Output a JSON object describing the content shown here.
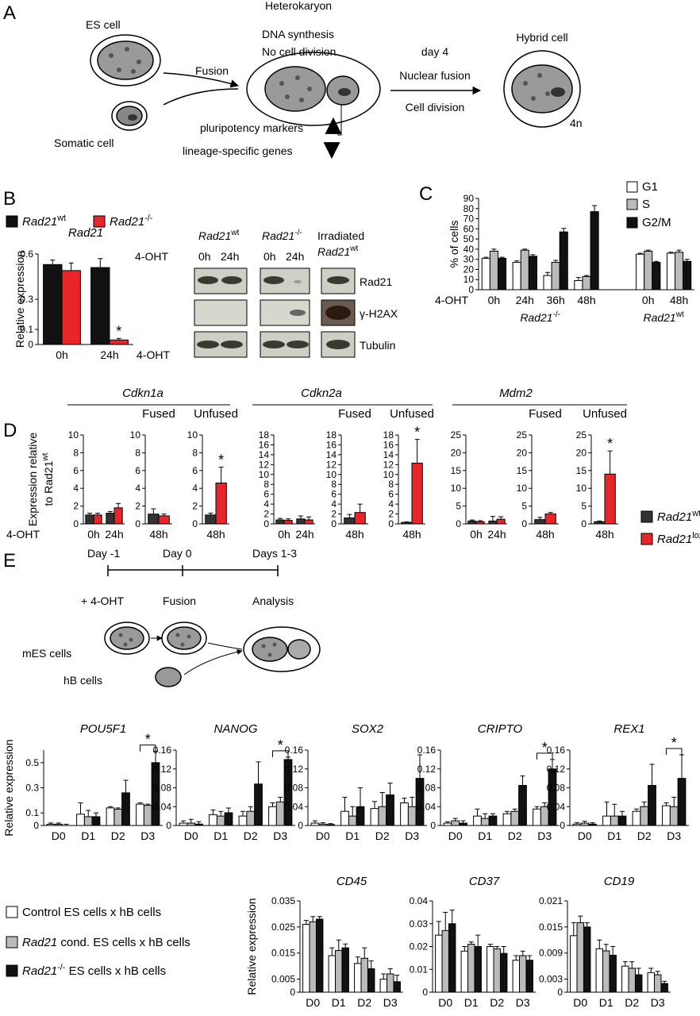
{
  "panel_labels": [
    "A",
    "B",
    "C",
    "D",
    "E"
  ],
  "panel_a": {
    "es_cell": "ES cell",
    "somatic_cell": "Somatic cell",
    "fusion": "Fusion",
    "heterokaryon": "Heterokaryon",
    "dna_synthesis": "DNA synthesis",
    "no_division": "No cell division",
    "pluripotency": "pluripotency markers",
    "lineage": "lineage-specific genes",
    "day4": "day 4",
    "nuclear_fusion": "Nuclear fusion",
    "cell_division": "Cell division",
    "hybrid_cell": "Hybrid cell",
    "ploidy": "4n"
  },
  "panel_b": {
    "legend": [
      {
        "text": "Rad21",
        "sup": "wt",
        "color": "#111111"
      },
      {
        "text": "Rad21",
        "sup": "-/-",
        "color": "#e8262a"
      }
    ]
  },
  "blot": {
    "headers": [
      {
        "text": "Rad21",
        "sup": "wt"
      },
      {
        "text": "Rad21",
        "sup": "-/-"
      }
    ],
    "irradiated": "Irradiated",
    "irradiated_header": {
      "text": "Rad21",
      "sup": "wt"
    },
    "treatment": "4-OHT",
    "lanes": [
      "0h",
      "24h",
      "0h",
      "24h"
    ],
    "rows": [
      "Rad21",
      "γ-H2AX",
      "Tubulin"
    ]
  },
  "panel_c": {
    "legend": [
      {
        "text": "G1",
        "color": "#ffffff"
      },
      {
        "text": "S",
        "color": "#bbbbbb"
      },
      {
        "text": "G2/M",
        "color": "#111111"
      }
    ]
  },
  "panel_d": {
    "genes": [
      "Cdkn1a",
      "Cdkn2a",
      "Mdm2"
    ],
    "ylabel_lines": [
      "Expression relative",
      {
        "text": "to Rad21",
        "sup": "wt"
      }
    ],
    "legend": [
      {
        "text": "Rad21",
        "sup": "wt",
        "color": "#333333"
      },
      {
        "text": "Rad21",
        "sup": "lox",
        "color": "#e8262a"
      }
    ]
  },
  "panel_e": {
    "days": [
      "Day -1",
      "Day 0",
      "Days 1-3"
    ],
    "steps": [
      "+ 4-OHT",
      "Fusion",
      "Analysis"
    ],
    "cells": [
      "mES cells",
      "hB cells"
    ],
    "legend": [
      {
        "text": "Control ES cells x hB cells",
        "color": "#ffffff"
      },
      {
        "text": "Rad21",
        "rest": " cond. ES cells x hB cells",
        "color": "#bbbbbb"
      },
      {
        "text": "Rad21",
        "sup": "-/-",
        "rest": " ES cells x hB cells",
        "color": "#111111"
      }
    ]
  },
  "chart_data": [
    {
      "type": "bar",
      "title": "Rad21",
      "ylabel": "Relative expression",
      "xlabel": "4-OHT",
      "categories": [
        "0h",
        "24h"
      ],
      "series": [
        {
          "values": [
            0.53,
            0.51
          ],
          "errors": [
            0.03,
            0.06
          ]
        },
        {
          "values": [
            0.49,
            0.03
          ],
          "errors": [
            0.05,
            0.01
          ]
        }
      ],
      "ylim": [
        0,
        0.6
      ],
      "yticks": [
        0,
        0.1,
        0.3,
        0.6
      ],
      "annotations": [
        {
          "text": "*",
          "category": 1,
          "series": 1
        }
      ]
    },
    {
      "type": "bar",
      "ylabel": "% of cells",
      "xlabel": "4-OHT",
      "categories": [
        "0h",
        "24h",
        "36h",
        "48h",
        null,
        "0h",
        "48h"
      ],
      "series": [
        {
          "values": [
            31,
            27,
            14,
            9,
            null,
            35,
            36
          ],
          "errors": [
            1,
            1.5,
            3,
            3,
            null,
            1,
            1
          ]
        },
        {
          "values": [
            38,
            39,
            27,
            13,
            null,
            38,
            37
          ],
          "errors": [
            2,
            1,
            2,
            1,
            null,
            1,
            2
          ]
        },
        {
          "values": [
            31,
            33,
            57,
            77,
            null,
            27,
            28
          ],
          "errors": [
            1,
            1.5,
            3.5,
            6,
            null,
            1,
            2
          ]
        }
      ],
      "ylim": [
        0,
        90
      ],
      "yticks": [
        0,
        10,
        20,
        30,
        40,
        50,
        60,
        70,
        80,
        90
      ],
      "groups": [
        {
          "label": {
            "text": "Rad21",
            "sup": "-/-"
          },
          "from": 0,
          "to": 3
        },
        {
          "label": {
            "text": "Rad21",
            "sup": "wt"
          },
          "from": 5,
          "to": 6
        }
      ]
    },
    {
      "type": "bar",
      "xlabel": "4-OHT",
      "categories": [
        "0h",
        "24h"
      ],
      "series": [
        {
          "values": [
            1.0,
            1.2
          ],
          "errors": [
            0.2,
            0.2
          ]
        },
        {
          "values": [
            1.0,
            1.8
          ],
          "errors": [
            0.2,
            0.5
          ]
        }
      ],
      "ylim": [
        0,
        10
      ],
      "yticks": [
        0,
        2,
        4,
        6,
        8,
        10
      ]
    },
    {
      "type": "bar",
      "title": "Fused",
      "categories": [
        "48h"
      ],
      "series": [
        {
          "values": [
            1.1
          ],
          "errors": [
            0.6
          ]
        },
        {
          "values": [
            0.9
          ],
          "errors": [
            0.2
          ]
        }
      ],
      "ylim": [
        0,
        10
      ],
      "yticks": [
        0,
        2,
        4,
        6,
        8,
        10
      ]
    },
    {
      "type": "bar",
      "title": "Unfused",
      "categories": [
        "48h"
      ],
      "series": [
        {
          "values": [
            1.0
          ],
          "errors": [
            0.2
          ]
        },
        {
          "values": [
            4.6
          ],
          "errors": [
            1.8
          ]
        }
      ],
      "ylim": [
        0,
        10
      ],
      "yticks": [
        0,
        2,
        4,
        6,
        8,
        10
      ],
      "annotations": [
        {
          "text": "*",
          "category": 0,
          "series": 1
        }
      ]
    },
    {
      "type": "bar",
      "categories": [
        "0h",
        "24h"
      ],
      "series": [
        {
          "values": [
            0.8,
            1.0
          ],
          "errors": [
            0.3,
            0.6
          ]
        },
        {
          "values": [
            0.7,
            0.8
          ],
          "errors": [
            0.3,
            0.6
          ]
        }
      ],
      "ylim": [
        0,
        18
      ],
      "yticks": [
        0,
        2,
        4,
        6,
        8,
        10,
        12,
        14,
        16,
        18
      ]
    },
    {
      "type": "bar",
      "title": "Fused",
      "categories": [
        "48h"
      ],
      "series": [
        {
          "values": [
            1.2
          ],
          "errors": [
            0.7
          ]
        },
        {
          "values": [
            2.3
          ],
          "errors": [
            1.7
          ]
        }
      ],
      "ylim": [
        0,
        18
      ],
      "yticks": [
        0,
        2,
        4,
        6,
        8,
        10,
        12,
        14,
        16,
        18
      ]
    },
    {
      "type": "bar",
      "title": "Unfused",
      "categories": [
        "48h"
      ],
      "series": [
        {
          "values": [
            0.3
          ],
          "errors": [
            0.1
          ]
        },
        {
          "values": [
            12.3
          ],
          "errors": [
            4.8
          ]
        }
      ],
      "ylim": [
        0,
        18
      ],
      "yticks": [
        0,
        2,
        4,
        6,
        8,
        10,
        12,
        14,
        16,
        18
      ],
      "annotations": [
        {
          "text": "*",
          "category": 0,
          "series": 1
        }
      ]
    },
    {
      "type": "bar",
      "categories": [
        "0h",
        "24h"
      ],
      "series": [
        {
          "values": [
            0.8,
            0.8
          ],
          "errors": [
            0.3,
            1.3
          ]
        },
        {
          "values": [
            0.6,
            1.3
          ],
          "errors": [
            0.3,
            0.7
          ]
        }
      ],
      "ylim": [
        0,
        25
      ],
      "yticks": [
        0,
        5,
        10,
        15,
        20,
        25
      ]
    },
    {
      "type": "bar",
      "title": "Fused",
      "categories": [
        "48h"
      ],
      "series": [
        {
          "values": [
            1.2
          ],
          "errors": [
            0.6
          ]
        },
        {
          "values": [
            2.8
          ],
          "errors": [
            0.4
          ]
        }
      ],
      "ylim": [
        0,
        25
      ],
      "yticks": [
        0,
        5,
        10,
        15,
        20,
        25
      ]
    },
    {
      "type": "bar",
      "title": "Unfused",
      "categories": [
        "48h"
      ],
      "series": [
        {
          "values": [
            0.6
          ],
          "errors": [
            0.2
          ]
        },
        {
          "values": [
            14
          ],
          "errors": [
            6.5
          ]
        }
      ],
      "ylim": [
        0,
        25
      ],
      "yticks": [
        0,
        5,
        10,
        15,
        20,
        25
      ],
      "annotations": [
        {
          "text": "*",
          "category": 0,
          "series": 1
        }
      ]
    },
    {
      "type": "bar",
      "title": "POU5F1",
      "ylabel": "Relative expression",
      "categories": [
        "D0",
        "D1",
        "D2",
        "D3"
      ],
      "series": [
        {
          "values": [
            0.01,
            0.09,
            0.14,
            0.17
          ],
          "errors": [
            0.01,
            0.09,
            0.01,
            0.01
          ]
        },
        {
          "values": [
            0.01,
            0.07,
            0.13,
            0.16
          ],
          "errors": [
            0.01,
            0.05,
            0.01,
            0.01
          ]
        },
        {
          "values": [
            0.0,
            0.07,
            0.26,
            0.5
          ],
          "errors": [
            0.01,
            0.03,
            0.1,
            0.09
          ]
        }
      ],
      "ylim": [
        0,
        0.6
      ],
      "yticks": [
        0,
        0.1,
        0.3,
        0.5
      ],
      "annotations": [
        {
          "text": "*",
          "category": 3
        }
      ]
    },
    {
      "type": "bar",
      "title": "NANOG",
      "categories": [
        "D0",
        "D1",
        "D2",
        "D3"
      ],
      "series": [
        {
          "values": [
            0.005,
            0.023,
            0.02,
            0.04
          ],
          "errors": [
            0.005,
            0.01,
            0.01,
            0.008
          ]
        },
        {
          "values": [
            0.005,
            0.02,
            0.03,
            0.05
          ],
          "errors": [
            0.008,
            0.01,
            0.01,
            0.01
          ]
        },
        {
          "values": [
            0.003,
            0.027,
            0.088,
            0.14
          ],
          "errors": [
            0.005,
            0.01,
            0.047,
            0.005
          ]
        }
      ],
      "ylim": [
        0,
        0.16
      ],
      "yticks": [
        0,
        0.04,
        0.08,
        0.12,
        0.16
      ],
      "annotations": [
        {
          "text": "*",
          "category": 3
        }
      ]
    },
    {
      "type": "bar",
      "title": "SOX2",
      "categories": [
        "D0",
        "D1",
        "D2",
        "D3"
      ],
      "series": [
        {
          "values": [
            0.005,
            0.03,
            0.036,
            0.048
          ],
          "errors": [
            0.005,
            0.03,
            0.015,
            0.01
          ]
        },
        {
          "values": [
            0.003,
            0.02,
            0.04,
            0.04
          ],
          "errors": [
            0.003,
            0.02,
            0.03,
            0.02
          ]
        },
        {
          "values": [
            0.002,
            0.04,
            0.065,
            0.1
          ],
          "errors": [
            0.002,
            0.04,
            0.025,
            0.05
          ]
        }
      ],
      "ylim": [
        0,
        0.16
      ],
      "yticks": [
        0,
        0.04,
        0.08,
        0.12,
        0.16
      ]
    },
    {
      "type": "bar",
      "title": "CRIPTO",
      "categories": [
        "D0",
        "D1",
        "D2",
        "D3"
      ],
      "series": [
        {
          "values": [
            0.005,
            0.02,
            0.025,
            0.035
          ],
          "errors": [
            0.003,
            0.015,
            0.005,
            0.005
          ]
        },
        {
          "values": [
            0.01,
            0.015,
            0.03,
            0.04
          ],
          "errors": [
            0.005,
            0.01,
            0.005,
            0.008
          ]
        },
        {
          "values": [
            0.005,
            0.02,
            0.085,
            0.12
          ],
          "errors": [
            0.005,
            0.005,
            0.02,
            0.02
          ]
        }
      ],
      "ylim": [
        0,
        0.16
      ],
      "yticks": [
        0,
        0.04,
        0.08,
        0.12,
        0.16
      ],
      "annotations": [
        {
          "text": "*",
          "category": 3
        }
      ]
    },
    {
      "type": "bar",
      "title": "REX1",
      "categories": [
        "D0",
        "D1",
        "D2",
        "D3"
      ],
      "series": [
        {
          "values": [
            0.003,
            0.02,
            0.03,
            0.042
          ],
          "errors": [
            0.003,
            0.03,
            0.005,
            0.006
          ]
        },
        {
          "values": [
            0.005,
            0.02,
            0.04,
            0.04
          ],
          "errors": [
            0.004,
            0.025,
            0.01,
            0.02
          ]
        },
        {
          "values": [
            0.003,
            0.02,
            0.085,
            0.1
          ],
          "errors": [
            0.003,
            0.01,
            0.045,
            0.05
          ]
        }
      ],
      "ylim": [
        0,
        0.16
      ],
      "yticks": [
        0,
        0.04,
        0.08,
        0.12,
        0.16
      ],
      "annotations": [
        {
          "text": "*",
          "category": 3
        }
      ]
    },
    {
      "type": "bar",
      "title": "CD45",
      "ylabel": "Relative expression",
      "categories": [
        "D0",
        "D1",
        "D2",
        "D3"
      ],
      "series": [
        {
          "values": [
            0.026,
            0.014,
            0.011,
            0.005
          ],
          "errors": [
            0.0015,
            0.003,
            0.0025,
            0.002
          ]
        },
        {
          "values": [
            0.027,
            0.016,
            0.013,
            0.007
          ],
          "errors": [
            0.002,
            0.004,
            0.004,
            0.002
          ]
        },
        {
          "values": [
            0.028,
            0.017,
            0.009,
            0.004
          ],
          "errors": [
            0.001,
            0.0015,
            0.003,
            0.0025
          ]
        }
      ],
      "ylim": [
        0,
        0.035
      ],
      "yticks": [
        0,
        0.005,
        0.015,
        0.025,
        0.035
      ]
    },
    {
      "type": "bar",
      "title": "CD37",
      "categories": [
        "D0",
        "D1",
        "D2",
        "D3"
      ],
      "series": [
        {
          "values": [
            0.025,
            0.018,
            0.02,
            0.014
          ],
          "errors": [
            0.006,
            0.002,
            0.001,
            0.002
          ]
        },
        {
          "values": [
            0.027,
            0.021,
            0.019,
            0.016
          ],
          "errors": [
            0.008,
            0.001,
            0.001,
            0.002
          ]
        },
        {
          "values": [
            0.03,
            0.02,
            0.017,
            0.014
          ],
          "errors": [
            0.006,
            0.005,
            0.003,
            0.002
          ]
        }
      ],
      "ylim": [
        0,
        0.04
      ],
      "yticks": [
        0,
        0.01,
        0.02,
        0.03,
        0.04
      ]
    },
    {
      "type": "bar",
      "title": "CD19",
      "categories": [
        "D0",
        "D1",
        "D2",
        "D3"
      ],
      "series": [
        {
          "values": [
            0.013,
            0.01,
            0.006,
            0.0045
          ],
          "errors": [
            0.003,
            0.002,
            0.001,
            0.001
          ]
        },
        {
          "values": [
            0.016,
            0.0095,
            0.0055,
            0.004
          ],
          "errors": [
            0.0015,
            0.0015,
            0.0015,
            0.0008
          ]
        },
        {
          "values": [
            0.015,
            0.0085,
            0.004,
            0.002
          ],
          "errors": [
            0.001,
            0.002,
            0.0015,
            0.0005
          ]
        }
      ],
      "ylim": [
        0,
        0.021
      ],
      "yticks": [
        0,
        0.003,
        0.009,
        0.015,
        0.021
      ]
    }
  ]
}
